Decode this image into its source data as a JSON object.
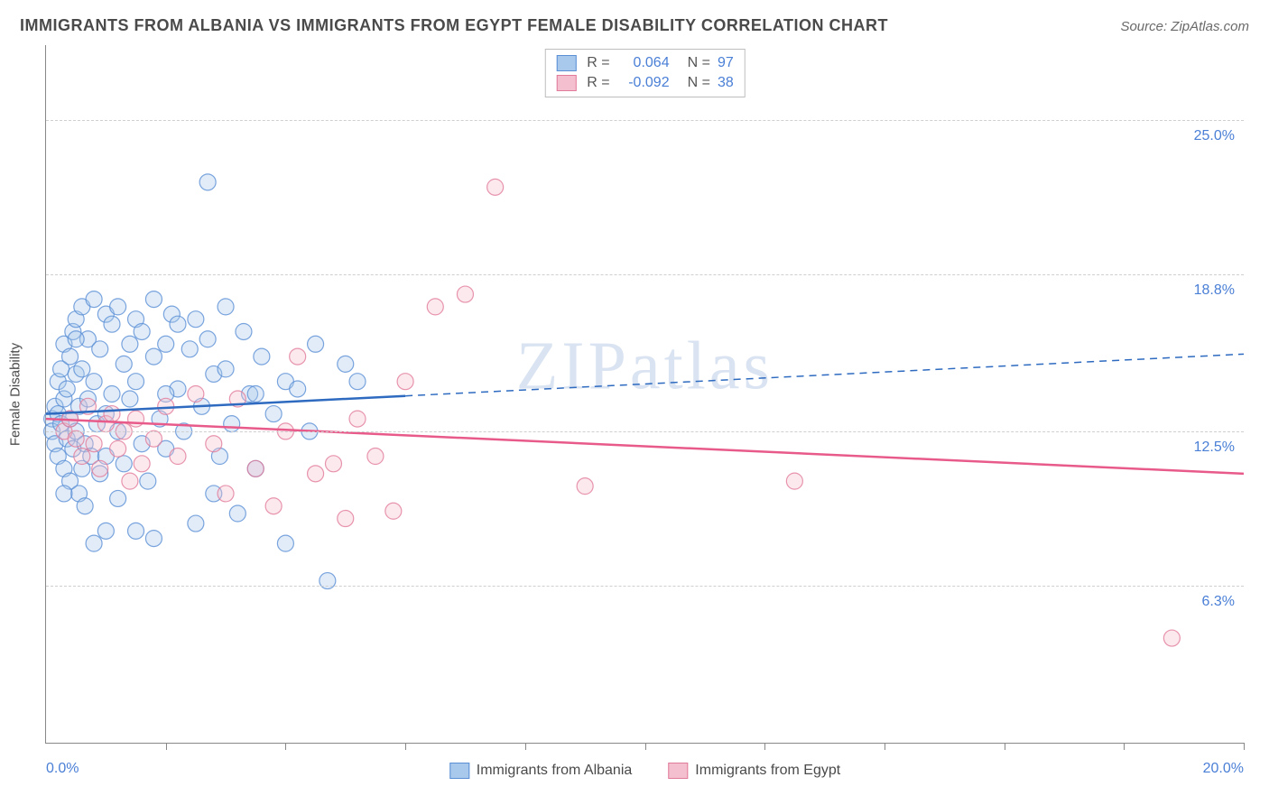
{
  "header": {
    "title": "IMMIGRANTS FROM ALBANIA VS IMMIGRANTS FROM EGYPT FEMALE DISABILITY CORRELATION CHART",
    "source": "Source: ZipAtlas.com"
  },
  "watermark": "ZIPatlas",
  "chart": {
    "type": "scatter",
    "background_color": "#ffffff",
    "grid_color": "#cfcfcf",
    "axis_color": "#888888",
    "label_color": "#4a7fd6",
    "title_color": "#4a4a4a",
    "yaxis_title": "Female Disability",
    "xlim": [
      0,
      20
    ],
    "ylim": [
      0,
      28
    ],
    "xticks": [
      0,
      2,
      4,
      6,
      8,
      10,
      12,
      14,
      16,
      18,
      20
    ],
    "xaxis_end_labels": {
      "left": "0.0%",
      "right": "20.0%"
    },
    "yticks": [
      {
        "v": 6.3,
        "label": "6.3%"
      },
      {
        "v": 12.5,
        "label": "12.5%"
      },
      {
        "v": 18.8,
        "label": "18.8%"
      },
      {
        "v": 25.0,
        "label": "25.0%"
      }
    ],
    "marker_radius": 9,
    "series": [
      {
        "name": "Immigrants from Albania",
        "fill": "#a8c8ec",
        "stroke": "#5a8fd6",
        "R": "0.064",
        "N": "97",
        "trend": {
          "solid_x_end": 6.0,
          "y0": 13.2,
          "y20": 15.6,
          "color": "#2e6bc0",
          "width": 2.5
        },
        "points": [
          [
            0.1,
            13.0
          ],
          [
            0.1,
            12.5
          ],
          [
            0.15,
            13.5
          ],
          [
            0.15,
            12.0
          ],
          [
            0.2,
            14.5
          ],
          [
            0.2,
            11.5
          ],
          [
            0.2,
            13.2
          ],
          [
            0.25,
            15.0
          ],
          [
            0.25,
            12.8
          ],
          [
            0.3,
            16.0
          ],
          [
            0.3,
            11.0
          ],
          [
            0.3,
            13.8
          ],
          [
            0.35,
            12.2
          ],
          [
            0.35,
            14.2
          ],
          [
            0.4,
            15.5
          ],
          [
            0.4,
            10.5
          ],
          [
            0.4,
            13.0
          ],
          [
            0.45,
            16.5
          ],
          [
            0.45,
            11.8
          ],
          [
            0.5,
            17.0
          ],
          [
            0.5,
            12.5
          ],
          [
            0.5,
            14.8
          ],
          [
            0.55,
            13.5
          ],
          [
            0.55,
            10.0
          ],
          [
            0.6,
            15.0
          ],
          [
            0.6,
            17.5
          ],
          [
            0.65,
            12.0
          ],
          [
            0.65,
            9.5
          ],
          [
            0.7,
            16.2
          ],
          [
            0.7,
            13.8
          ],
          [
            0.75,
            11.5
          ],
          [
            0.8,
            17.8
          ],
          [
            0.8,
            14.5
          ],
          [
            0.85,
            12.8
          ],
          [
            0.9,
            15.8
          ],
          [
            0.9,
            10.8
          ],
          [
            1.0,
            17.2
          ],
          [
            1.0,
            13.2
          ],
          [
            1.0,
            8.5
          ],
          [
            1.1,
            16.8
          ],
          [
            1.1,
            14.0
          ],
          [
            1.2,
            12.5
          ],
          [
            1.2,
            17.5
          ],
          [
            1.3,
            15.2
          ],
          [
            1.3,
            11.2
          ],
          [
            1.4,
            13.8
          ],
          [
            1.5,
            17.0
          ],
          [
            1.5,
            14.5
          ],
          [
            1.6,
            12.0
          ],
          [
            1.6,
            16.5
          ],
          [
            1.7,
            10.5
          ],
          [
            1.8,
            15.5
          ],
          [
            1.8,
            17.8
          ],
          [
            1.9,
            13.0
          ],
          [
            2.0,
            16.0
          ],
          [
            2.0,
            11.8
          ],
          [
            2.1,
            17.2
          ],
          [
            2.2,
            14.2
          ],
          [
            2.3,
            12.5
          ],
          [
            2.4,
            15.8
          ],
          [
            2.5,
            8.8
          ],
          [
            2.5,
            17.0
          ],
          [
            2.6,
            13.5
          ],
          [
            2.7,
            16.2
          ],
          [
            2.8,
            14.8
          ],
          [
            2.9,
            11.5
          ],
          [
            3.0,
            15.0
          ],
          [
            3.0,
            17.5
          ],
          [
            3.1,
            12.8
          ],
          [
            3.2,
            9.2
          ],
          [
            3.3,
            16.5
          ],
          [
            3.4,
            14.0
          ],
          [
            3.5,
            11.0
          ],
          [
            3.6,
            15.5
          ],
          [
            3.8,
            13.2
          ],
          [
            4.0,
            14.5
          ],
          [
            4.0,
            8.0
          ],
          [
            4.2,
            14.2
          ],
          [
            4.4,
            12.5
          ],
          [
            4.5,
            16.0
          ],
          [
            4.7,
            6.5
          ],
          [
            5.0,
            15.2
          ],
          [
            5.2,
            14.5
          ],
          [
            2.7,
            22.5
          ],
          [
            0.5,
            16.2
          ],
          [
            1.2,
            9.8
          ],
          [
            1.8,
            8.2
          ],
          [
            2.2,
            16.8
          ],
          [
            0.8,
            8.0
          ],
          [
            1.5,
            8.5
          ],
          [
            0.3,
            10.0
          ],
          [
            0.6,
            11.0
          ],
          [
            1.0,
            11.5
          ],
          [
            1.4,
            16.0
          ],
          [
            3.5,
            14.0
          ],
          [
            2.0,
            14.0
          ],
          [
            2.8,
            10.0
          ]
        ]
      },
      {
        "name": "Immigrants from Egypt",
        "fill": "#f4c0cf",
        "stroke": "#e27a9a",
        "R": "-0.092",
        "N": "38",
        "trend": {
          "solid_x_end": 20.0,
          "y0": 13.0,
          "y20": 10.8,
          "color": "#e85a8a",
          "width": 2.5
        },
        "points": [
          [
            0.3,
            12.5
          ],
          [
            0.4,
            13.0
          ],
          [
            0.5,
            12.2
          ],
          [
            0.6,
            11.5
          ],
          [
            0.7,
            13.5
          ],
          [
            0.8,
            12.0
          ],
          [
            0.9,
            11.0
          ],
          [
            1.0,
            12.8
          ],
          [
            1.1,
            13.2
          ],
          [
            1.2,
            11.8
          ],
          [
            1.3,
            12.5
          ],
          [
            1.4,
            10.5
          ],
          [
            1.5,
            13.0
          ],
          [
            1.6,
            11.2
          ],
          [
            1.8,
            12.2
          ],
          [
            2.0,
            13.5
          ],
          [
            2.2,
            11.5
          ],
          [
            2.5,
            14.0
          ],
          [
            2.8,
            12.0
          ],
          [
            3.0,
            10.0
          ],
          [
            3.2,
            13.8
          ],
          [
            3.5,
            11.0
          ],
          [
            3.8,
            9.5
          ],
          [
            4.0,
            12.5
          ],
          [
            4.2,
            15.5
          ],
          [
            4.5,
            10.8
          ],
          [
            4.8,
            11.2
          ],
          [
            5.0,
            9.0
          ],
          [
            5.2,
            13.0
          ],
          [
            5.5,
            11.5
          ],
          [
            5.8,
            9.3
          ],
          [
            6.0,
            14.5
          ],
          [
            6.5,
            17.5
          ],
          [
            7.0,
            18.0
          ],
          [
            7.5,
            22.3
          ],
          [
            9.0,
            10.3
          ],
          [
            12.5,
            10.5
          ],
          [
            18.8,
            4.2
          ]
        ]
      }
    ]
  },
  "legend_bottom": [
    {
      "label": "Immigrants from Albania",
      "fill": "#a8c8ec",
      "stroke": "#5a8fd6"
    },
    {
      "label": "Immigrants from Egypt",
      "fill": "#f4c0cf",
      "stroke": "#e27a9a"
    }
  ]
}
